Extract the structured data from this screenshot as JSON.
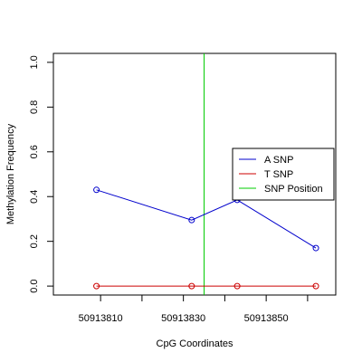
{
  "chart_data": {
    "type": "line",
    "xlabel": "CpG Coordinates",
    "ylabel": "Methylation Frequency",
    "xlim": [
      50913798.6,
      50913866.8
    ],
    "ylim": [
      -0.04,
      1.04
    ],
    "x_ticks": [
      50913810,
      50913820,
      50913830,
      50913840,
      50913850,
      50913860
    ],
    "x_tick_labels": [
      "50913810",
      "",
      "50913830",
      "",
      "50913850",
      ""
    ],
    "y_ticks": [
      0.0,
      0.2,
      0.4,
      0.6,
      0.8,
      1.0
    ],
    "y_tick_labels": [
      "0.0",
      "0.2",
      "0.4",
      "0.6",
      "0.8",
      "1.0"
    ],
    "grid": false,
    "legend_position": "right",
    "series": [
      {
        "name": "A SNP",
        "color": "#0000cc",
        "x": [
          50913809,
          50913832,
          50913843,
          50913862
        ],
        "y": [
          0.43,
          0.295,
          0.385,
          0.17
        ]
      },
      {
        "name": "T SNP",
        "color": "#cc0000",
        "x": [
          50913809,
          50913832,
          50913843,
          50913862
        ],
        "y": [
          0.0,
          0.0,
          0.0,
          0.0
        ]
      }
    ],
    "reference_lines": [
      {
        "name": "SNP Position",
        "axis": "x",
        "value": 50913835,
        "color": "#00cc00"
      }
    ],
    "legend": [
      {
        "label": "A SNP",
        "color": "#0000cc"
      },
      {
        "label": "T SNP",
        "color": "#cc0000"
      },
      {
        "label": "SNP Position",
        "color": "#00cc00"
      }
    ]
  }
}
